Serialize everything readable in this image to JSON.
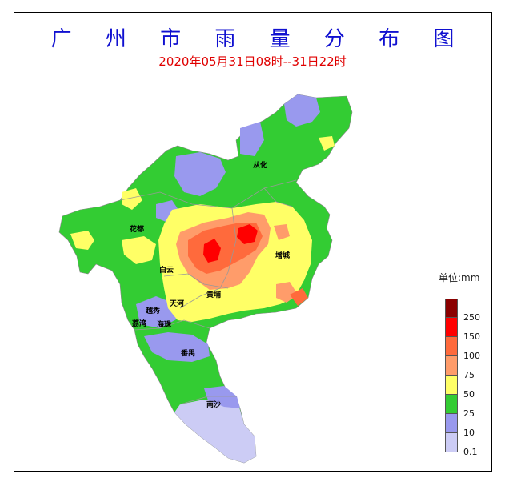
{
  "title": "广 州 市 雨 量 分 布 图",
  "subtitle": "2020年05月31日08时--31日22时",
  "legend": {
    "unit_label": "单位:mm",
    "items": [
      {
        "label": "250",
        "color": "#8b0000"
      },
      {
        "label": "150",
        "color": "#ff0000"
      },
      {
        "label": "100",
        "color": "#ff6a3c"
      },
      {
        "label": "75",
        "color": "#ff9c6a"
      },
      {
        "label": "50",
        "color": "#ffff66"
      },
      {
        "label": "25",
        "color": "#33cc33"
      },
      {
        "label": "10",
        "color": "#9999ee"
      },
      {
        "label": "0.1",
        "color": "#ccccf5"
      }
    ]
  },
  "districts": {
    "conghua": "从化",
    "huadu": "花都",
    "zengcheng": "增城",
    "baiyun": "白云",
    "huangpu": "黄埔",
    "tianhe": "天河",
    "yuexiu": "越秀",
    "liwan": "荔湾",
    "haizhu": "海珠",
    "panyu": "番禺",
    "nansha": "南沙"
  }
}
